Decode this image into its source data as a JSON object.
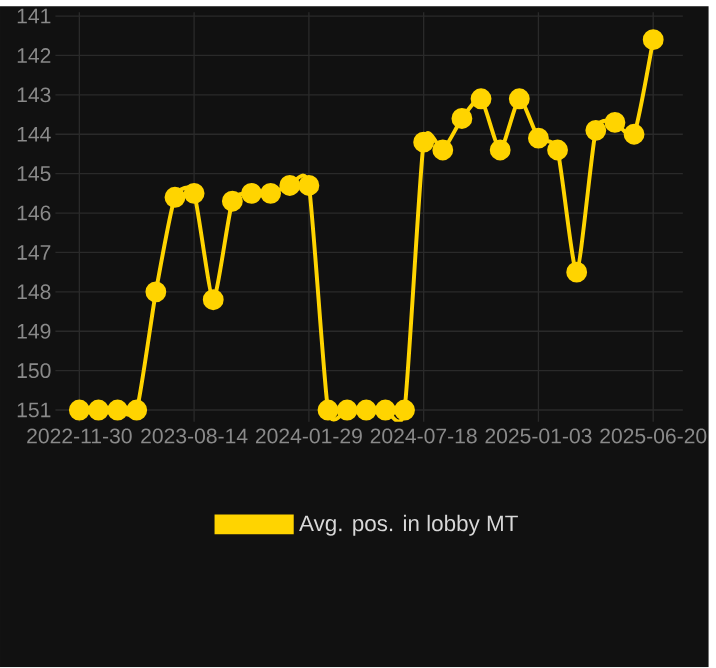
{
  "chart_data": {
    "type": "line",
    "categories": [
      "2022-11-30",
      null,
      null,
      null,
      null,
      null,
      "2023-08-14",
      null,
      null,
      null,
      null,
      null,
      "2024-01-29",
      null,
      null,
      null,
      null,
      null,
      "2024-07-18",
      null,
      null,
      null,
      null,
      null,
      "2025-01-03",
      null,
      null,
      null,
      null,
      null,
      "2025-06-20"
    ],
    "series": [
      {
        "name": "Avg. pos. in lobby MT",
        "color": "#ffd400",
        "values": [
          151,
          151,
          151,
          151,
          148.0,
          145.6,
          145.5,
          148.2,
          145.7,
          145.5,
          145.5,
          145.3,
          145.3,
          151,
          151,
          151,
          151,
          151,
          144.2,
          144.4,
          143.6,
          143.1,
          144.4,
          143.1,
          144.1,
          144.4,
          147.5,
          143.9,
          143.7,
          144.0,
          141.6
        ]
      }
    ],
    "ylim": [
      151.3,
      140.9
    ],
    "yticks": [
      141,
      142,
      143,
      144,
      145,
      146,
      147,
      148,
      149,
      150,
      151
    ],
    "grid": true,
    "legend": "bottom",
    "marker": "circle",
    "line_style": "solid"
  }
}
